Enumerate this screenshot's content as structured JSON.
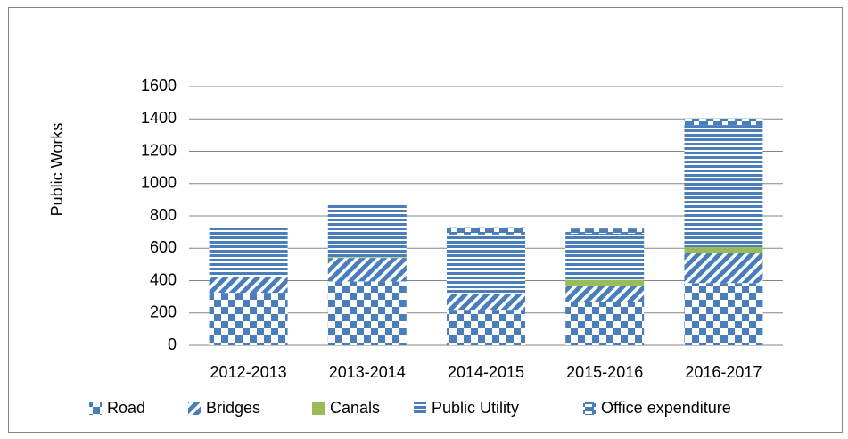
{
  "chart_data": {
    "type": "stacked_bar",
    "y_label": "Public Works",
    "categories": [
      "2012-2013",
      "2013-2014",
      "2014-2015",
      "2015-2016",
      "2016-2017"
    ],
    "series": [
      {
        "name": "Road",
        "color": "#4a7ebb",
        "pattern": "checker",
        "values": [
          325,
          395,
          220,
          265,
          385
        ]
      },
      {
        "name": "Bridges",
        "color": "#4a7ebb",
        "pattern": "diagonal",
        "values": [
          100,
          145,
          95,
          105,
          185
        ]
      },
      {
        "name": "Canals",
        "color": "#9bbb59",
        "pattern": "solid",
        "values": [
          0,
          5,
          0,
          35,
          37
        ]
      },
      {
        "name": "Public Utility",
        "color": "#4a7ebb",
        "pattern": "horizontal",
        "values": [
          305,
          335,
          370,
          285,
          755
        ]
      },
      {
        "name": "Office expenditure",
        "color": "#4a7ebb",
        "pattern": "dashes",
        "values": [
          0,
          0,
          45,
          32,
          40
        ]
      }
    ],
    "ylim": [
      0,
      1600
    ],
    "yticks": [
      0,
      200,
      400,
      600,
      800,
      1000,
      1200,
      1400,
      1600
    ],
    "grid": true,
    "legend": "bottom"
  }
}
